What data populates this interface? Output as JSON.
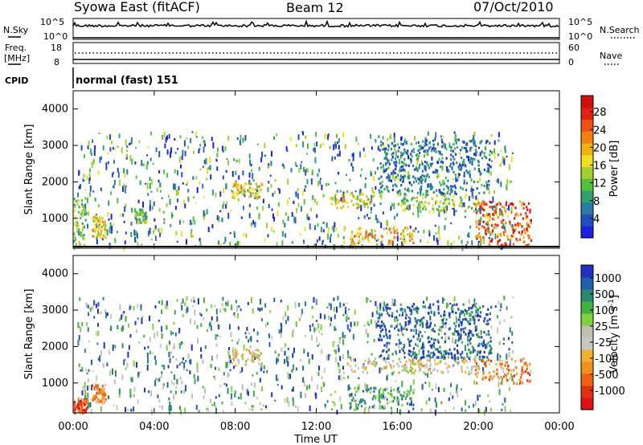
{
  "header": {
    "station": "Syowa East (fitACF)",
    "beam": "Beam 12",
    "date": "07/Oct/2010"
  },
  "noise_panel": {
    "left_label": "N.Sky",
    "right_label": "N.Search",
    "left_ticks": [
      "10^5",
      "10^0"
    ],
    "right_ticks": [
      "10^5",
      "10^0"
    ]
  },
  "freq_panel": {
    "left_label_line1": "Freq.",
    "left_label_line2": "[MHz]",
    "right_label": "Nave",
    "left_ticks": [
      "18",
      "8"
    ],
    "right_ticks": [
      "60",
      "0"
    ]
  },
  "cpid": {
    "label": "CPID",
    "value": "normal (fast) 151"
  },
  "x_axis": {
    "label": "Time UT",
    "ticks": [
      "00:00",
      "04:00",
      "08:00",
      "12:00",
      "16:00",
      "20:00",
      "00:00"
    ]
  },
  "chart_data": [
    {
      "type": "heatmap",
      "title": "Power",
      "xlabel": "Time UT",
      "ylabel": "Slant Range [km]",
      "xlim": [
        0,
        24
      ],
      "ylim": [
        180,
        4500
      ],
      "y_ticks": [
        "1000",
        "2000",
        "3000",
        "4000"
      ],
      "colorbar": {
        "label": "Power [dB]",
        "ticks": [
          "4",
          "8",
          "12",
          "16",
          "20",
          "24",
          "28"
        ],
        "colors": [
          "#2020e0",
          "#2050c0",
          "#2a7aa8",
          "#30a070",
          "#50c040",
          "#a0d030",
          "#f0e020",
          "#f0b010",
          "#f08010",
          "#f05010",
          "#e02010",
          "#d01010"
        ]
      },
      "regions": [
        {
          "t": [
            0.0,
            0.6
          ],
          "r": [
            200,
            1600
          ],
          "level": 14
        },
        {
          "t": [
            0.9,
            1.6
          ],
          "r": [
            500,
            1100
          ],
          "level": 18
        },
        {
          "t": [
            3.0,
            3.6
          ],
          "r": [
            900,
            1300
          ],
          "level": 12
        },
        {
          "t": [
            7.8,
            9.3
          ],
          "r": [
            1600,
            2000
          ],
          "level": 16
        },
        {
          "t": [
            12.7,
            14.8
          ],
          "r": [
            1300,
            1800
          ],
          "level": 18
        },
        {
          "t": [
            13.6,
            16.8
          ],
          "r": [
            300,
            800
          ],
          "level": 20
        },
        {
          "t": [
            16.0,
            20.0
          ],
          "r": [
            1200,
            1700
          ],
          "level": 14
        },
        {
          "t": [
            19.8,
            22.6
          ],
          "r": [
            250,
            1500
          ],
          "level": 24
        },
        {
          "t": [
            15.0,
            20.6
          ],
          "r": [
            1700,
            3200
          ],
          "level": 8
        }
      ]
    },
    {
      "type": "heatmap",
      "title": "Velocity",
      "xlabel": "Time UT",
      "ylabel": "Slant Range [km]",
      "xlim": [
        0,
        24
      ],
      "ylim": [
        180,
        4500
      ],
      "y_ticks": [
        "1000",
        "2000",
        "3000",
        "4000"
      ],
      "colorbar": {
        "label": "Velocity [m s^-1]",
        "ticks": [
          "1000",
          "500",
          "100",
          "25",
          "-25",
          "-100",
          "-500",
          "-1000"
        ],
        "colors": [
          "#2030c0",
          "#2060b0",
          "#2a8a70",
          "#40b040",
          "#80d040",
          "#c0c0b0",
          "#c8c8c0",
          "#f0b030",
          "#f09020",
          "#f06010",
          "#e03010",
          "#e01010"
        ]
      },
      "regions": [
        {
          "t": [
            0.0,
            0.7
          ],
          "r": [
            200,
            600
          ],
          "level": -500
        },
        {
          "t": [
            0.9,
            1.6
          ],
          "r": [
            500,
            1000
          ],
          "level": -100
        },
        {
          "t": [
            7.8,
            9.3
          ],
          "r": [
            1500,
            2000
          ],
          "level": 0
        },
        {
          "t": [
            13.5,
            20.0
          ],
          "r": [
            1300,
            1700
          ],
          "level": 0
        },
        {
          "t": [
            13.6,
            16.8
          ],
          "r": [
            300,
            900
          ],
          "level": 100
        },
        {
          "t": [
            19.8,
            22.6
          ],
          "r": [
            1000,
            1700
          ],
          "level": -100
        },
        {
          "t": [
            15.0,
            20.6
          ],
          "r": [
            1700,
            3200
          ],
          "level": 500
        }
      ]
    }
  ]
}
